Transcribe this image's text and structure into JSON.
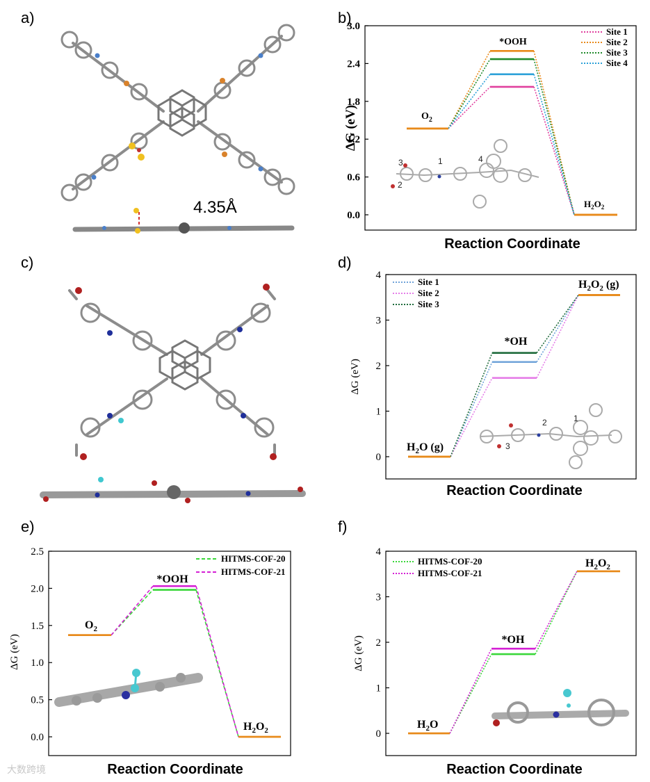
{
  "panel_labels": [
    "a)",
    "b)",
    "c)",
    "d)",
    "e)",
    "f)"
  ],
  "distance_label": "4.35Å",
  "watermark": "大数跨境",
  "colors": {
    "orange": "#e88a1a",
    "pink": "#e0409e",
    "green": "#1f8a2a",
    "blue": "#2aa0d8",
    "lightblue": "#6fa3d9",
    "violet": "#e57de8",
    "darkgreen": "#1e6b3b",
    "lime": "#39d739",
    "magenta": "#d41fd4"
  },
  "inset_labels": {
    "b": [
      "1",
      "2",
      "3",
      "4"
    ],
    "d": [
      "1",
      "2",
      "3"
    ]
  },
  "chart_data": [
    {
      "id": "b",
      "type": "line",
      "title": "",
      "xlabel": "Reaction Coordinate",
      "ylabel": "ΔG (eV)",
      "ylim": [
        0,
        3.0
      ],
      "yticks": [
        "0.0",
        "0.6",
        "1.2",
        "1.8",
        "2.4",
        "3.0"
      ],
      "states": [
        "O2",
        "*OOH",
        "H2O2"
      ],
      "state_labels": {
        "O2": "O",
        "O2_sub": "2",
        "OOH": "*OOH",
        "H2O2_a": "H",
        "H2O2_sub1": "2",
        "H2O2_b": "O",
        "H2O2_sub2": "2"
      },
      "series": [
        {
          "name": "Site 1",
          "values": [
            1.37,
            2.03,
            0.0
          ]
        },
        {
          "name": "Site 2",
          "values": [
            1.37,
            2.6,
            0.0
          ]
        },
        {
          "name": "Site 3",
          "values": [
            1.37,
            2.47,
            0.0
          ]
        },
        {
          "name": "Site 4",
          "values": [
            1.37,
            2.23,
            0.0
          ]
        }
      ]
    },
    {
      "id": "d",
      "type": "line",
      "title": "",
      "xlabel": "Reaction Coordinate",
      "ylabel": "ΔG (eV)",
      "ylim": [
        0,
        4
      ],
      "yticks": [
        "0",
        "1",
        "2",
        "3",
        "4"
      ],
      "states": [
        "H2O (g)",
        "*OH",
        "H2O2 (g)"
      ],
      "state_labels": {
        "H2O_a": "H",
        "H2O_sub": "2",
        "H2O_b": "O (g)",
        "OH": "*OH",
        "H2O2_a": "H",
        "H2O2_sub1": "2",
        "H2O2_b": "O",
        "H2O2_sub2": "2",
        "H2O2_c": " (g)"
      },
      "series": [
        {
          "name": "Site 1",
          "values": [
            0.0,
            2.08,
            3.55
          ]
        },
        {
          "name": "Site 2",
          "values": [
            0.0,
            1.73,
            3.55
          ]
        },
        {
          "name": "Site 3",
          "values": [
            0.0,
            2.28,
            3.55
          ]
        }
      ]
    },
    {
      "id": "e",
      "type": "line",
      "title": "",
      "xlabel": "Reaction Coordinate",
      "ylabel": "ΔG (eV)",
      "ylim": [
        0,
        2.5
      ],
      "yticks": [
        "0.0",
        "0.5",
        "1.0",
        "1.5",
        "2.0",
        "2.5"
      ],
      "states": [
        "O2",
        "*OOH",
        "H2O2"
      ],
      "state_labels": {
        "O2": "O",
        "O2_sub": "2",
        "OOH": "*OOH",
        "H2O2_a": "H",
        "H2O2_sub1": "2",
        "H2O2_b": "O",
        "H2O2_sub2": "2"
      },
      "series": [
        {
          "name": "HITMS-COF-20",
          "values": [
            1.37,
            1.98,
            0.0
          ]
        },
        {
          "name": "HITMS-COF-21",
          "values": [
            1.37,
            2.03,
            0.0
          ]
        }
      ]
    },
    {
      "id": "f",
      "type": "line",
      "title": "",
      "xlabel": "Reaction Coordinate",
      "ylabel": "ΔG (eV)",
      "ylim": [
        0,
        4
      ],
      "yticks": [
        "0",
        "1",
        "2",
        "3",
        "4"
      ],
      "states": [
        "H2O",
        "*OH",
        "H2O2"
      ],
      "state_labels": {
        "H2O_a": "H",
        "H2O_sub": "2",
        "H2O_b": "O",
        "OH": "*OH",
        "H2O2_a": "H",
        "H2O2_sub1": "2",
        "H2O2_b": "O",
        "H2O2_sub2": "2"
      },
      "series": [
        {
          "name": "HITMS-COF-20",
          "values": [
            0.0,
            1.74,
            3.56
          ]
        },
        {
          "name": "HITMS-COF-21",
          "values": [
            0.0,
            1.86,
            3.56
          ]
        }
      ]
    }
  ]
}
